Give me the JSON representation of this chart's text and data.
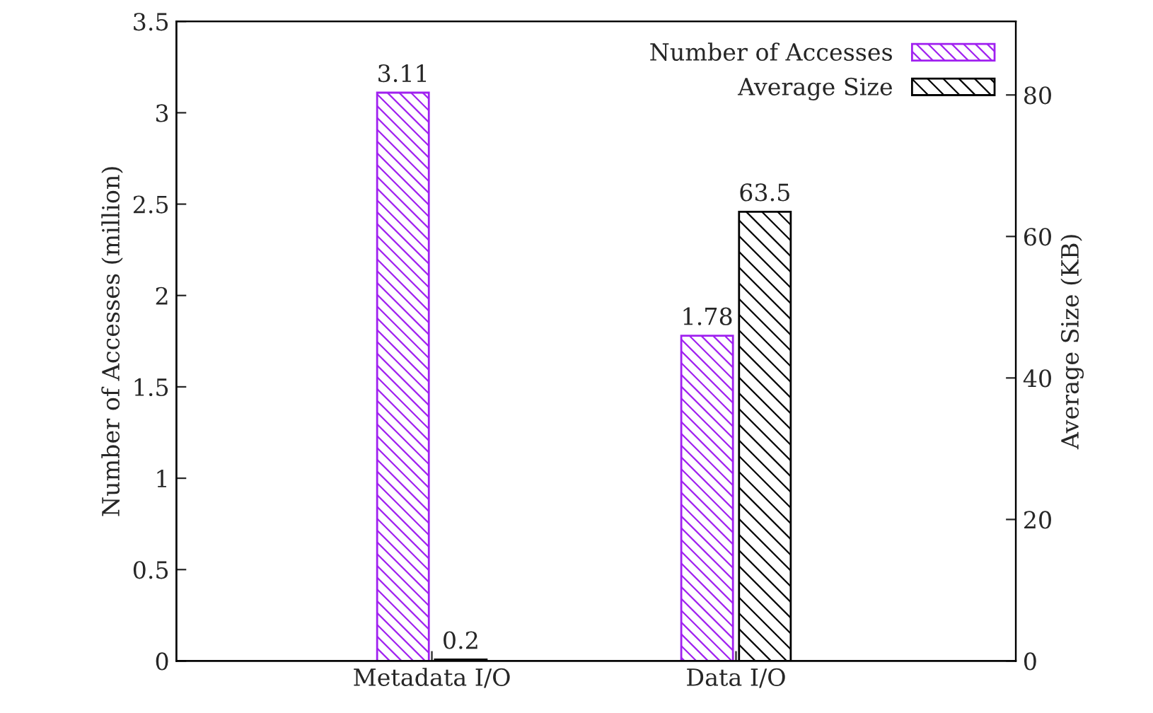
{
  "chart_data": {
    "type": "bar",
    "categories": [
      "Metadata I/O",
      "Data I/O"
    ],
    "series": [
      {
        "name": "Number of Accesses",
        "color": "#a020f0",
        "values": [
          3.11,
          1.78
        ]
      },
      {
        "name": "Average Size",
        "color": "#000000",
        "values": [
          0.2,
          63.5
        ],
        "axis": "y2"
      }
    ],
    "ylabel": "Number of Accesses (million)",
    "y2label": "Average Size (KB)",
    "ylim": [
      0,
      3.5
    ],
    "yticks": [
      0,
      0.5,
      1,
      1.5,
      2,
      2.5,
      3,
      3.5
    ],
    "y2lim": [
      0,
      90.4
    ],
    "y2ticks": [
      0,
      20,
      40,
      60,
      80
    ],
    "data_labels": true,
    "legend": "top right",
    "grid": false
  }
}
